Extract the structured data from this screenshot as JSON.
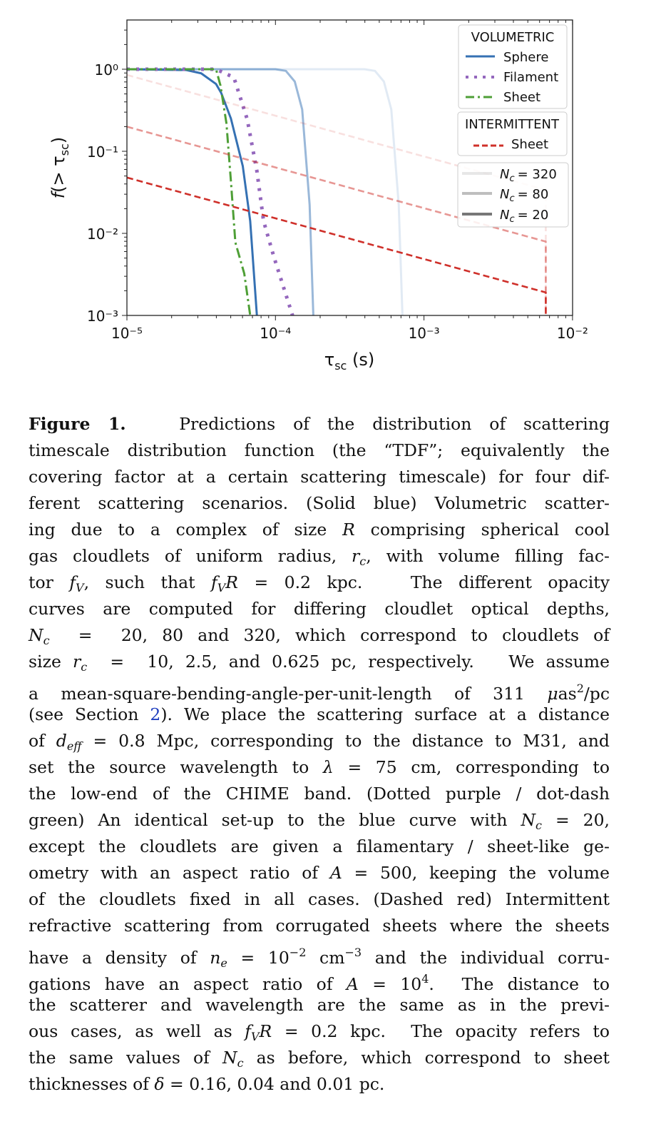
{
  "chart_data": {
    "type": "line",
    "xscale": "log",
    "yscale": "log",
    "xlabel": "τsc (s)",
    "ylabel": "f(> τsc)",
    "xlim_log10": [
      -5,
      -2
    ],
    "ylim_log10": [
      -3,
      0.6
    ],
    "x_ticks": [
      {
        "v": -5,
        "label": "10⁻⁵"
      },
      {
        "v": -4,
        "label": "10⁻⁴"
      },
      {
        "v": -3,
        "label": "10⁻³"
      },
      {
        "v": -2,
        "label": "10⁻²"
      }
    ],
    "y_ticks": [
      {
        "v": 0,
        "label": "10⁰"
      },
      {
        "v": -1,
        "label": "10⁻¹"
      },
      {
        "v": -2,
        "label": "10⁻²"
      },
      {
        "v": -3,
        "label": "10⁻³"
      }
    ],
    "colors": {
      "sphere": "#3571b3",
      "filament": "#9467bd",
      "sheet": "#4e9f36",
      "intermittent": "#cf302a"
    },
    "series_note": "points are [log10 tau_sc, log10 f]",
    "series": [
      {
        "name": "Sphere Nc=320",
        "group": "sphere",
        "nc": 320,
        "points": [
          [
            -5,
            0
          ],
          [
            -3.4,
            0
          ],
          [
            -3.33,
            -0.02
          ],
          [
            -3.27,
            -0.15
          ],
          [
            -3.22,
            -0.49
          ],
          [
            -3.17,
            -1.65
          ],
          [
            -3.145,
            -3.0
          ]
        ]
      },
      {
        "name": "Sphere Nc=80",
        "group": "sphere",
        "nc": 80,
        "points": [
          [
            -5,
            0
          ],
          [
            -4,
            0
          ],
          [
            -3.93,
            -0.02
          ],
          [
            -3.87,
            -0.15
          ],
          [
            -3.82,
            -0.49
          ],
          [
            -3.77,
            -1.65
          ],
          [
            -3.745,
            -3.0
          ]
        ]
      },
      {
        "name": "Sphere Nc=20",
        "group": "sphere",
        "nc": 20,
        "points": [
          [
            -5,
            0
          ],
          [
            -4.6,
            -0.01
          ],
          [
            -4.5,
            -0.05
          ],
          [
            -4.4,
            -0.18
          ],
          [
            -4.365,
            -0.29
          ],
          [
            -4.3,
            -0.6
          ],
          [
            -4.22,
            -1.18
          ],
          [
            -4.17,
            -1.85
          ],
          [
            -4.125,
            -3.0
          ]
        ]
      },
      {
        "name": "Filament Nc=20",
        "group": "filament",
        "nc": 20,
        "points": [
          [
            -5,
            0
          ],
          [
            -4.4,
            0
          ],
          [
            -4.28,
            -0.1
          ],
          [
            -4.19,
            -0.61
          ],
          [
            -4.125,
            -1.24
          ],
          [
            -4.08,
            -1.85
          ],
          [
            -4.01,
            -2.29
          ],
          [
            -3.885,
            -3.0
          ]
        ]
      },
      {
        "name": "Sheet Nc=20",
        "group": "sheet",
        "nc": 20,
        "points": [
          [
            -5,
            0
          ],
          [
            -4.4,
            0
          ],
          [
            -4.37,
            -0.2
          ],
          [
            -4.33,
            -0.66
          ],
          [
            -4.3,
            -1.36
          ],
          [
            -4.27,
            -2.11
          ],
          [
            -4.21,
            -2.49
          ],
          [
            -4.17,
            -3.0
          ]
        ]
      },
      {
        "name": "Intermittent Sheet Nc=320",
        "group": "intermittent",
        "nc": 320,
        "points": [
          [
            -5,
            -0.07
          ],
          [
            -2.18,
            -1.47
          ],
          [
            -2.18,
            -3.0
          ]
        ]
      },
      {
        "name": "Intermittent Sheet Nc=80",
        "group": "intermittent",
        "nc": 80,
        "points": [
          [
            -5,
            -0.7
          ],
          [
            -2.18,
            -2.1
          ],
          [
            -2.18,
            -3.0
          ]
        ]
      },
      {
        "name": "Intermittent Sheet Nc=20",
        "group": "intermittent",
        "nc": 20,
        "points": [
          [
            -5,
            -1.32
          ],
          [
            -2.18,
            -2.72
          ],
          [
            -2.18,
            -3.0
          ]
        ]
      }
    ],
    "legend": {
      "placement": "top-right",
      "volumetric_title": "VOLUMETRIC",
      "volumetric_items": [
        "Sphere",
        "Filament",
        "Sheet"
      ],
      "intermittent_title": "INTERMITTENT",
      "intermittent_items": [
        "Sheet"
      ],
      "nc_items": [
        "= 320",
        "= 80",
        "= 20"
      ],
      "nc_symbol": "N",
      "nc_sub": "c"
    }
  },
  "caption": {
    "lines": [
      [
        {
          "b": "Figure 1."
        },
        "   Predictions of the distribution of scattering"
      ],
      [
        "timescale distribution function (the “TDF”; equivalently the"
      ],
      [
        "covering factor at a certain scattering timescale) for four dif-"
      ],
      [
        "ferent scattering scenarios. (Solid blue) Volumetric scatter-"
      ],
      [
        "ing due to a complex of size ",
        {
          "i": "R"
        },
        " comprising spherical cool"
      ],
      [
        "gas cloudlets of uniform radius, ",
        {
          "i": "r"
        },
        {
          "sub": "c"
        },
        ", with volume filling fac-"
      ],
      [
        "tor ",
        {
          "i": "f"
        },
        {
          "sub": "V"
        },
        ", such that ",
        {
          "i": "f"
        },
        {
          "sub": "V"
        },
        {
          "i": "R"
        },
        " = 0.2 kpc.   The different opacity"
      ],
      [
        "curves are computed for differing cloudlet optical depths,"
      ],
      [
        {
          "i": "N"
        },
        {
          "sub": "c"
        },
        "  =  20, 80 and 320, which correspond to cloudlets of"
      ],
      [
        "size ",
        {
          "i": "r"
        },
        {
          "sub": "c"
        },
        "  =  10, 2.5, and 0.625 pc, respectively.   We assume"
      ],
      [
        "a mean-square-bending-angle-per-unit-length of 311 ",
        {
          "i": "μ"
        },
        "as",
        {
          "sup": "2"
        },
        "/pc"
      ],
      [
        "(see Section ",
        {
          "link": "2"
        },
        "). We place the scattering surface at a distance"
      ],
      [
        "of ",
        {
          "i": "d"
        },
        {
          "sub": "eff"
        },
        " = 0.8 Mpc, corresponding to the distance to M31, and"
      ],
      [
        "set the source wavelength to ",
        {
          "i": "λ"
        },
        " = 75 cm, corresponding to"
      ],
      [
        "the low-end of the CHIME band. (Dotted purple / dot-dash"
      ],
      [
        "green) An identical set-up to the blue curve with ",
        {
          "i": "N"
        },
        {
          "sub": "c"
        },
        " = 20,"
      ],
      [
        "except the cloudlets are given a filamentary / sheet-like ge-"
      ],
      [
        "ometry with an aspect ratio of ",
        {
          "i": "A"
        },
        " = 500, keeping the volume"
      ],
      [
        "of the cloudlets fixed in all cases. (Dashed red) Intermittent"
      ],
      [
        "refractive scattering from corrugated sheets where the sheets"
      ],
      [
        "have a density of ",
        {
          "i": "n"
        },
        {
          "sub": "e"
        },
        " = 10",
        {
          "sup": "−2"
        },
        " cm",
        {
          "sup": "−3"
        },
        " and the individual corru-"
      ],
      [
        "gations have an aspect ratio of ",
        {
          "i": "A"
        },
        " = 10",
        {
          "sup": "4"
        },
        ".  The distance to"
      ],
      [
        "the scatterer and wavelength are the same as in the previ-"
      ],
      [
        "ous cases, as well as ",
        {
          "i": "f"
        },
        {
          "sub": "V"
        },
        {
          "i": "R"
        },
        " = 0.2 kpc.  The opacity refers to"
      ],
      [
        "the same values of ",
        {
          "i": "N"
        },
        {
          "sub": "c"
        },
        " as before, which correspond to sheet"
      ],
      [
        "thicknesses of ",
        {
          "i": "δ"
        },
        " = 0.16, 0.04 and 0.01 pc."
      ]
    ]
  }
}
